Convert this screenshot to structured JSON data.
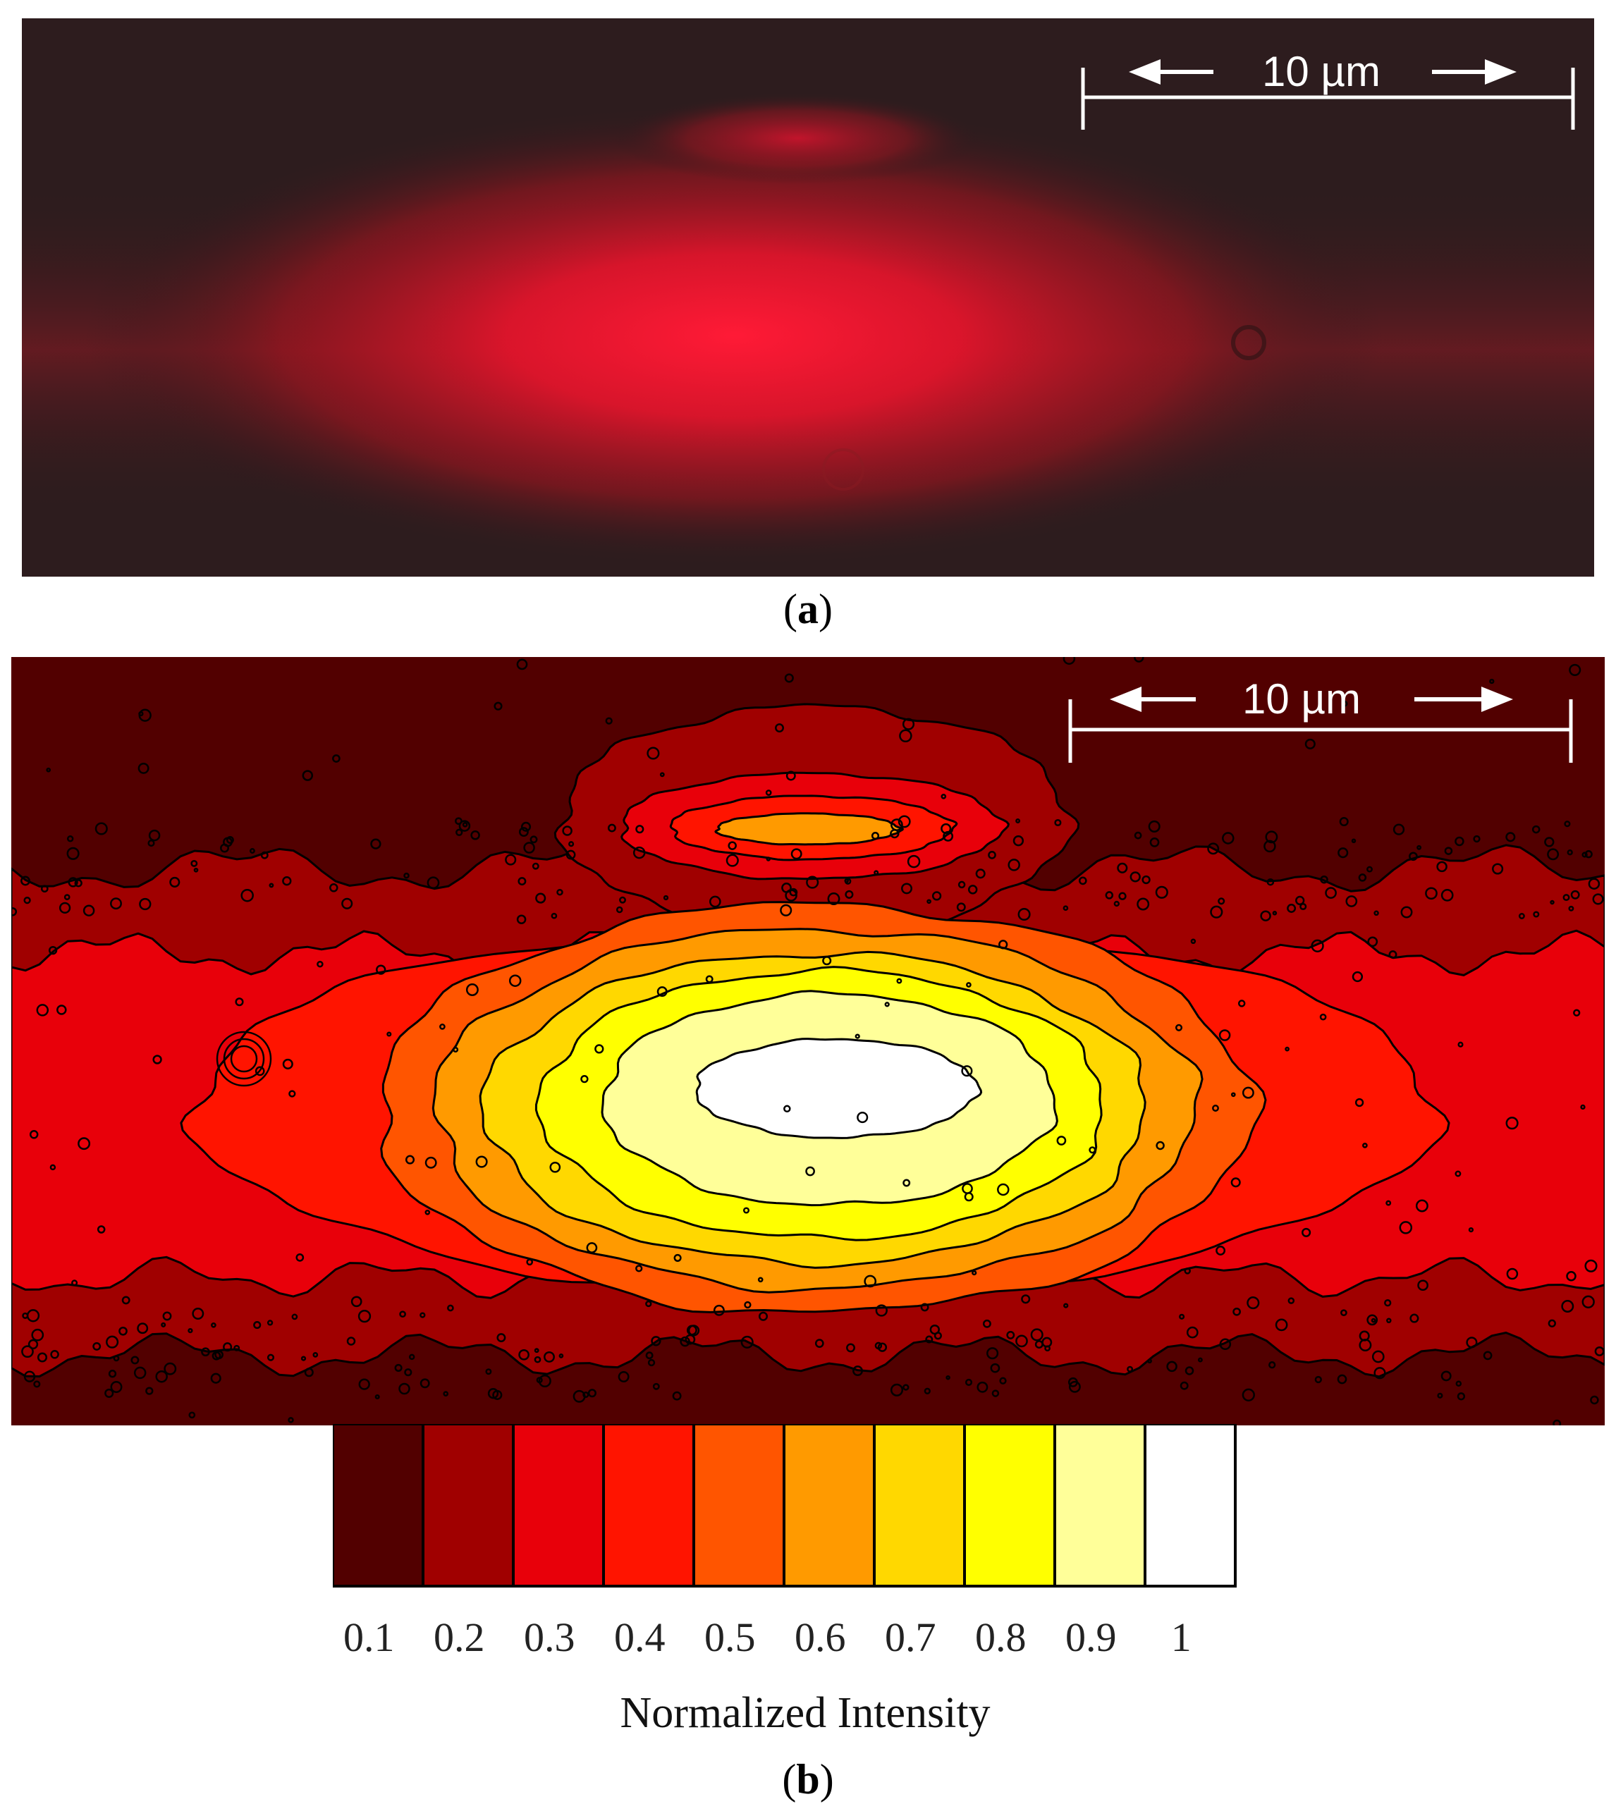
{
  "panel_a": {
    "label": "a",
    "scalebar": {
      "text": "10 µm"
    }
  },
  "panel_b": {
    "label": "b",
    "scalebar": {
      "text": "10 µm"
    }
  },
  "colors": {
    "background_dark": "#2a1a1c",
    "glow": "#ff1430",
    "levels": [
      "#520000",
      "#a00000",
      "#e8000a",
      "#ff1400",
      "#ff5500",
      "#ff9a00",
      "#ffd800",
      "#ffff00",
      "#ffff99",
      "#ffffff"
    ]
  },
  "chart_data": {
    "type": "heatmap",
    "title": "",
    "colorbar": {
      "label": "Normalized Intensity",
      "ticks": [
        "0.1",
        "0.2",
        "0.3",
        "0.4",
        "0.5",
        "0.6",
        "0.7",
        "0.8",
        "0.9",
        "1"
      ],
      "levels": [
        0.1,
        0.2,
        0.3,
        0.4,
        0.5,
        0.6,
        0.7,
        0.8,
        0.9,
        1.0
      ]
    }
  }
}
